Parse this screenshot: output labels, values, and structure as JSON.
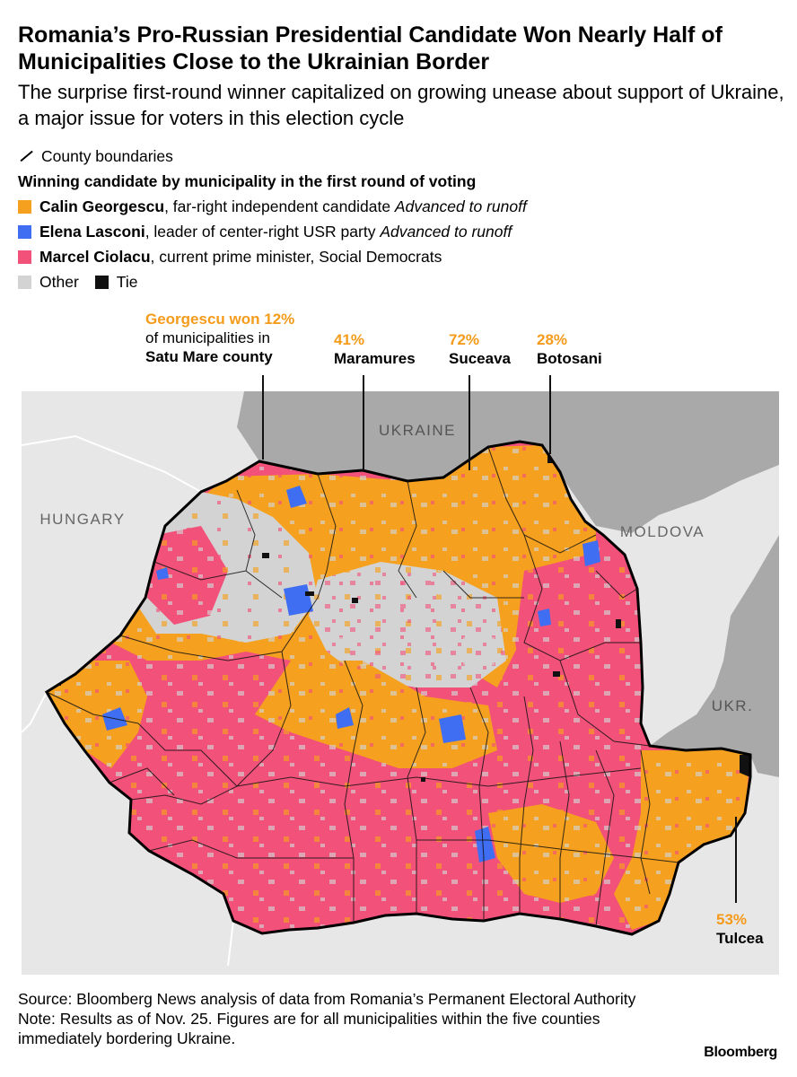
{
  "title": "Romania’s Pro-Russian Presidential Candidate Won Nearly Half of Municipalities Close to the Ukrainian Border",
  "subtitle": "The surprise first-round winner capitalized on growing unease about support of Ukraine, a major issue for voters in this election cycle",
  "legend": {
    "boundary_label": "County boundaries",
    "heading": "Winning candidate by municipality in the first round of voting",
    "georgescu": {
      "name": "Calin Georgescu",
      "desc": ", far-right independent candidate ",
      "note": "Advanced to runoff",
      "color": "#f5a11f"
    },
    "lasconi": {
      "name": "Elena Lasconi",
      "desc": ", leader of center-right USR party ",
      "note": "Advanced to runoff",
      "color": "#3f6ef2"
    },
    "ciolacu": {
      "name": "Marcel Ciolacu",
      "desc": ", current prime minister, Social Democrats",
      "color": "#f2517a"
    },
    "other": {
      "label": "Other",
      "color": "#d3d3d3"
    },
    "tie": {
      "label": "Tie",
      "color": "#111111"
    }
  },
  "countries": {
    "ukraine": "UKRAINE",
    "hungary": "HUNGARY",
    "moldova": "MOLDOVA",
    "ukr_short": "UKR."
  },
  "annotations": {
    "satu_mare": {
      "pct_line": "Georgescu won 12%",
      "line2": "of municipalities in",
      "county": "Satu Mare county"
    },
    "maramures": {
      "pct": "41%",
      "county": "Maramures"
    },
    "suceava": {
      "pct": "72%",
      "county": "Suceava"
    },
    "botosani": {
      "pct": "28%",
      "county": "Botosani"
    },
    "tulcea": {
      "pct": "53%",
      "county": "Tulcea"
    }
  },
  "source": {
    "line1": "Source: Bloomberg News analysis of data from Romania’s Permanent Electoral Authority",
    "line2": "Note: Results as of Nov. 25. Figures are for all municipalities within the five counties immediately bordering Ukraine."
  },
  "brand": "Bloomberg"
}
